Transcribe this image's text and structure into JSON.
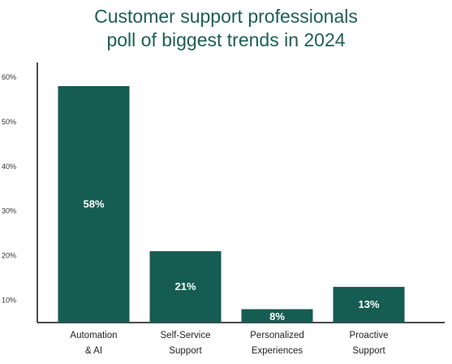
{
  "title_lines": [
    "Customer support professionals",
    "poll of biggest trends in 2024"
  ],
  "colors": {
    "bar": "#155c53",
    "title": "#1e5e54",
    "axis": "#111111"
  },
  "chart_data": {
    "type": "bar",
    "categories": [
      [
        "Automation",
        "& AI"
      ],
      [
        "Self-Service",
        "Support"
      ],
      [
        "Personalized",
        "Experiences"
      ],
      [
        "Proactive",
        "Support"
      ]
    ],
    "values": [
      58,
      21,
      8,
      13
    ],
    "value_labels": [
      "58%",
      "21%",
      "8%",
      "13%"
    ],
    "yticks": [
      10,
      20,
      30,
      40,
      50,
      60
    ],
    "ytick_labels": [
      "10%",
      "20%",
      "30%",
      "40%",
      "50%",
      "60%"
    ],
    "ylim": [
      5,
      60
    ],
    "xlabel": "",
    "ylabel": "",
    "grid": false,
    "legend": "none"
  }
}
